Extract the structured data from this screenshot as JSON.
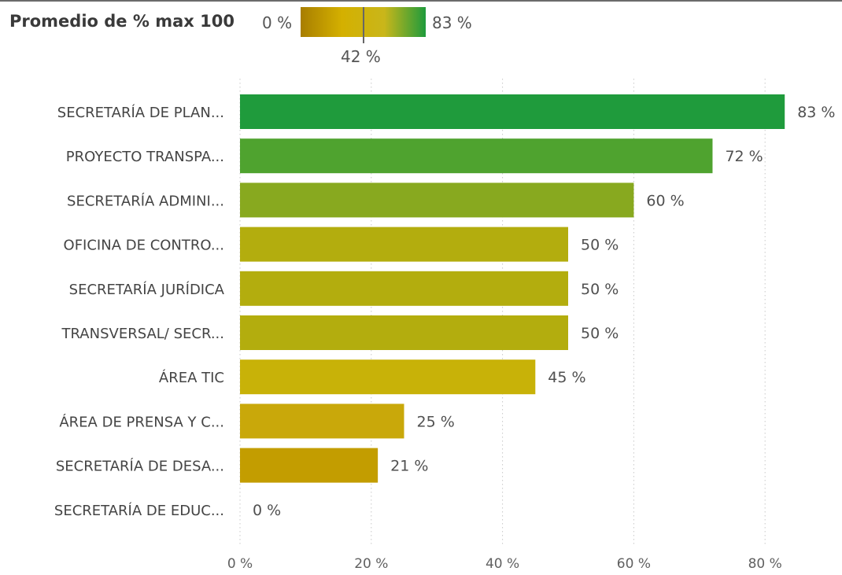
{
  "chart_data": {
    "type": "bar",
    "orientation": "horizontal",
    "categories": [
      "SECRETARÍA DE PLAN...",
      "PROYECTO TRANSPA...",
      "SECRETARÍA ADMINI...",
      "OFICINA DE CONTRO...",
      "SECRETARÍA JURÍDICA",
      "TRANSVERSAL/ SECR...",
      "ÁREA TIC",
      "ÁREA DE PRENSA Y C...",
      "SECRETARÍA DE DESA...",
      "SECRETARÍA DE EDUC..."
    ],
    "values": [
      83,
      72,
      60,
      50,
      50,
      50,
      45,
      25,
      21,
      0
    ],
    "value_labels": [
      "83 %",
      "72 %",
      "60 %",
      "50 %",
      "50 %",
      "50 %",
      "45 %",
      "25 %",
      "21 %",
      "0 %"
    ],
    "colors": [
      "#1f9b3c",
      "#4fa32f",
      "#88a91f",
      "#b3ad0e",
      "#b3ad0e",
      "#b3ad0e",
      "#c8b208",
      "#c9a80a",
      "#c39d00",
      "#c39d00"
    ],
    "xlim": [
      0,
      83
    ],
    "x_ticks": [
      0,
      20,
      40,
      60,
      80
    ],
    "x_tick_labels": [
      "0 %",
      "20 %",
      "40 %",
      "60 %",
      "80 %"
    ],
    "grid": "vertical dotted",
    "xlabel": "",
    "ylabel": "",
    "legend": {
      "title": "Promedio de % max 100",
      "min_label": "0 %",
      "max_label": "83 %",
      "mid_label": "42 %",
      "mid_value": 42,
      "gradient_colors": [
        "#a87e00",
        "#d4b000",
        "#c9b61a",
        "#1f9b3c"
      ]
    }
  }
}
